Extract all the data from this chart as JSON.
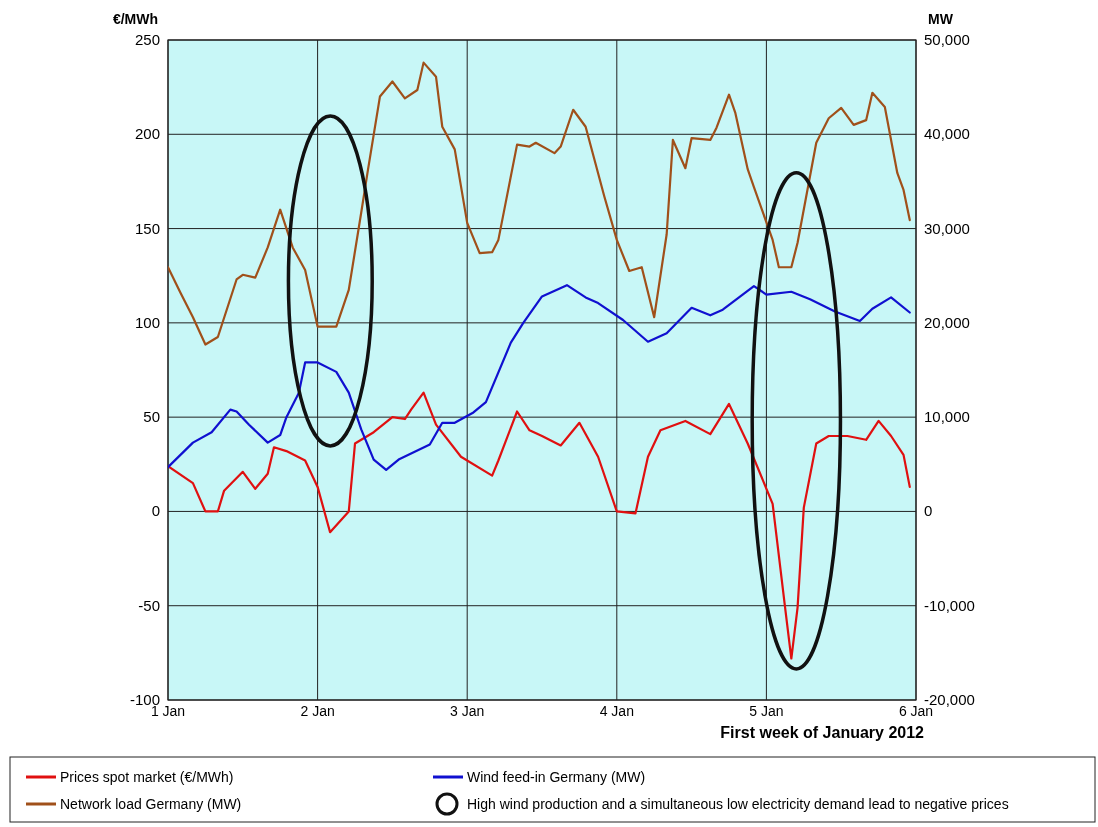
{
  "chart_data": {
    "type": "line",
    "xlabel": "First week of January 2012",
    "ylabel": "€/MWh",
    "y2label": "MW",
    "xlim": [
      "2012-01-01T00:00",
      "2012-01-06T00:00"
    ],
    "xticks": [
      {
        "value": "2012-01-01T00:00",
        "label": "1 Jan"
      },
      {
        "value": "2012-01-02T00:00",
        "label": "2 Jan"
      },
      {
        "value": "2012-01-03T00:00",
        "label": "3 Jan"
      },
      {
        "value": "2012-01-04T00:00",
        "label": "4 Jan"
      },
      {
        "value": "2012-01-05T00:00",
        "label": "5 Jan"
      },
      {
        "value": "2012-01-06T00:00",
        "label": "6 Jan"
      }
    ],
    "ylim": [
      -100,
      250
    ],
    "yticks": [
      -100,
      -50,
      0,
      50,
      100,
      150,
      200,
      250
    ],
    "y2lim": [
      -20000,
      50000
    ],
    "y2ticks": [
      {
        "value": -20000,
        "label": "-20,000"
      },
      {
        "value": -10000,
        "label": "-10,000"
      },
      0,
      {
        "value": 10000,
        "label": "10,000"
      },
      {
        "value": 20000,
        "label": "20,000"
      },
      {
        "value": 30000,
        "label": "30,000"
      },
      {
        "value": 40000,
        "label": "40,000"
      },
      {
        "value": 50000,
        "label": "50,000"
      }
    ],
    "grid": true,
    "legend": "bottom",
    "annotations": [
      "High wind production and a simultaneous low electricity demand lead to negative prices"
    ],
    "series": [
      {
        "name": "Prices spot market (€/MWh)",
        "color": "#e01010",
        "x": [
          "2012-01-01T00:00",
          "2012-01-01T04:00",
          "2012-01-01T06:00",
          "2012-01-01T08:00",
          "2012-01-01T09:00",
          "2012-01-01T12:00",
          "2012-01-01T14:00",
          "2012-01-01T16:00",
          "2012-01-01T17:00",
          "2012-01-01T19:00",
          "2012-01-01T22:00",
          "2012-01-02T00:00",
          "2012-01-02T02:00",
          "2012-01-02T05:00",
          "2012-01-02T06:00",
          "2012-01-02T09:00",
          "2012-01-02T12:00",
          "2012-01-02T14:00",
          "2012-01-02T15:00",
          "2012-01-02T17:00",
          "2012-01-02T19:00",
          "2012-01-02T23:00",
          "2012-01-03T04:00",
          "2012-01-03T05:00",
          "2012-01-03T08:00",
          "2012-01-03T10:00",
          "2012-01-03T12:00",
          "2012-01-03T15:00",
          "2012-01-03T18:00",
          "2012-01-03T21:00",
          "2012-01-04T00:00",
          "2012-01-04T03:00",
          "2012-01-04T05:00",
          "2012-01-04T07:00",
          "2012-01-04T11:00",
          "2012-01-04T15:00",
          "2012-01-04T18:00",
          "2012-01-04T21:00",
          "2012-01-05T01:00",
          "2012-01-05T03:00",
          "2012-01-05T04:00",
          "2012-01-05T05:00",
          "2012-01-05T06:00",
          "2012-01-05T08:00",
          "2012-01-05T10:00",
          "2012-01-05T13:00",
          "2012-01-05T16:00",
          "2012-01-05T18:00",
          "2012-01-05T20:00",
          "2012-01-05T22:00",
          "2012-01-05T23:00"
        ],
        "values": [
          24,
          15,
          0,
          0,
          11,
          21,
          12,
          20,
          34,
          32,
          27,
          13,
          -11,
          0,
          36,
          42,
          50,
          49,
          54,
          63,
          46,
          29,
          19,
          27,
          53,
          43,
          40,
          35,
          47,
          29,
          0,
          -1,
          29,
          43,
          48,
          41,
          57,
          36,
          4,
          -51,
          -78,
          -51,
          2,
          36,
          40,
          40,
          38,
          48,
          40,
          30,
          13
        ]
      },
      {
        "name": "Wind feed-in Germany (MW)",
        "color": "#1010d0",
        "axis": "y2",
        "x": [
          "2012-01-01T00:00",
          "2012-01-01T04:00",
          "2012-01-01T07:00",
          "2012-01-01T10:00",
          "2012-01-01T11:00",
          "2012-01-01T13:00",
          "2012-01-01T16:00",
          "2012-01-01T18:00",
          "2012-01-01T19:00",
          "2012-01-01T21:00",
          "2012-01-01T22:00",
          "2012-01-02T00:00",
          "2012-01-02T03:00",
          "2012-01-02T05:00",
          "2012-01-02T07:00",
          "2012-01-02T09:00",
          "2012-01-02T11:00",
          "2012-01-02T13:00",
          "2012-01-02T18:00",
          "2012-01-02T20:00",
          "2012-01-02T22:00",
          "2012-01-03T01:00",
          "2012-01-03T03:00",
          "2012-01-03T07:00",
          "2012-01-03T09:00",
          "2012-01-03T12:00",
          "2012-01-03T16:00",
          "2012-01-03T19:00",
          "2012-01-03T21:00",
          "2012-01-04T01:00",
          "2012-01-04T05:00",
          "2012-01-04T08:00",
          "2012-01-04T12:00",
          "2012-01-04T15:00",
          "2012-01-04T17:00",
          "2012-01-04T22:00",
          "2012-01-05T00:00",
          "2012-01-05T04:00",
          "2012-01-05T07:00",
          "2012-01-05T11:00",
          "2012-01-05T15:00",
          "2012-01-05T17:00",
          "2012-01-05T20:00",
          "2012-01-05T23:00"
        ],
        "values": [
          4700,
          7300,
          8400,
          10800,
          10600,
          9200,
          7300,
          8100,
          10000,
          12600,
          15800,
          15800,
          14800,
          12600,
          8700,
          5500,
          4400,
          5500,
          7100,
          9400,
          9400,
          10500,
          11600,
          17900,
          20000,
          22800,
          24000,
          22700,
          22100,
          20300,
          18000,
          18900,
          21600,
          20800,
          21400,
          23900,
          23000,
          23300,
          22500,
          21200,
          20200,
          21500,
          22700,
          21100
        ]
      },
      {
        "name": "Network load Germany (MW)",
        "color": "#a0501a",
        "axis": "y2",
        "x": [
          "2012-01-01T00:00",
          "2012-01-01T02:00",
          "2012-01-01T04:00",
          "2012-01-01T06:00",
          "2012-01-01T08:00",
          "2012-01-01T11:00",
          "2012-01-01T12:00",
          "2012-01-01T14:00",
          "2012-01-01T16:00",
          "2012-01-01T18:00",
          "2012-01-01T20:00",
          "2012-01-01T22:00",
          "2012-01-02T00:00",
          "2012-01-02T03:00",
          "2012-01-02T05:00",
          "2012-01-02T07:00",
          "2012-01-02T08:00",
          "2012-01-02T10:00",
          "2012-01-02T12:00",
          "2012-01-02T14:00",
          "2012-01-02T16:00",
          "2012-01-02T17:00",
          "2012-01-02T19:00",
          "2012-01-02T20:00",
          "2012-01-02T22:00",
          "2012-01-03T00:00",
          "2012-01-03T02:00",
          "2012-01-03T04:00",
          "2012-01-03T05:00",
          "2012-01-03T08:00",
          "2012-01-03T10:00",
          "2012-01-03T11:00",
          "2012-01-03T14:00",
          "2012-01-03T15:00",
          "2012-01-03T17:00",
          "2012-01-03T19:00",
          "2012-01-03T22:00",
          "2012-01-04T00:00",
          "2012-01-04T02:00",
          "2012-01-04T04:00",
          "2012-01-04T06:00",
          "2012-01-04T08:00",
          "2012-01-04T09:00",
          "2012-01-04T11:00",
          "2012-01-04T12:00",
          "2012-01-04T15:00",
          "2012-01-04T16:00",
          "2012-01-04T18:00",
          "2012-01-04T19:00",
          "2012-01-04T21:00",
          "2012-01-04T22:00",
          "2012-01-05T01:00",
          "2012-01-05T02:00",
          "2012-01-05T04:00",
          "2012-01-05T05:00",
          "2012-01-05T08:00",
          "2012-01-05T10:00",
          "2012-01-05T12:00",
          "2012-01-05T14:00",
          "2012-01-05T16:00",
          "2012-01-05T17:00",
          "2012-01-05T19:00",
          "2012-01-05T21:00",
          "2012-01-05T22:00",
          "2012-01-05T23:00"
        ],
        "values": [
          25900,
          23200,
          20600,
          17700,
          18500,
          24600,
          25100,
          24800,
          28000,
          32000,
          28000,
          25600,
          19600,
          19600,
          23500,
          31700,
          35900,
          44000,
          45600,
          43800,
          44700,
          47600,
          46100,
          40800,
          38400,
          30600,
          27400,
          27500,
          28800,
          38900,
          38700,
          39100,
          38000,
          38700,
          42600,
          40800,
          33400,
          28800,
          25500,
          25900,
          20600,
          29400,
          39400,
          36400,
          39600,
          39400,
          40700,
          44200,
          42300,
          36300,
          34400,
          28800,
          25900,
          25900,
          28500,
          39100,
          41700,
          42800,
          41000,
          41500,
          44400,
          42900,
          35900,
          34100,
          30900
        ]
      }
    ]
  }
}
